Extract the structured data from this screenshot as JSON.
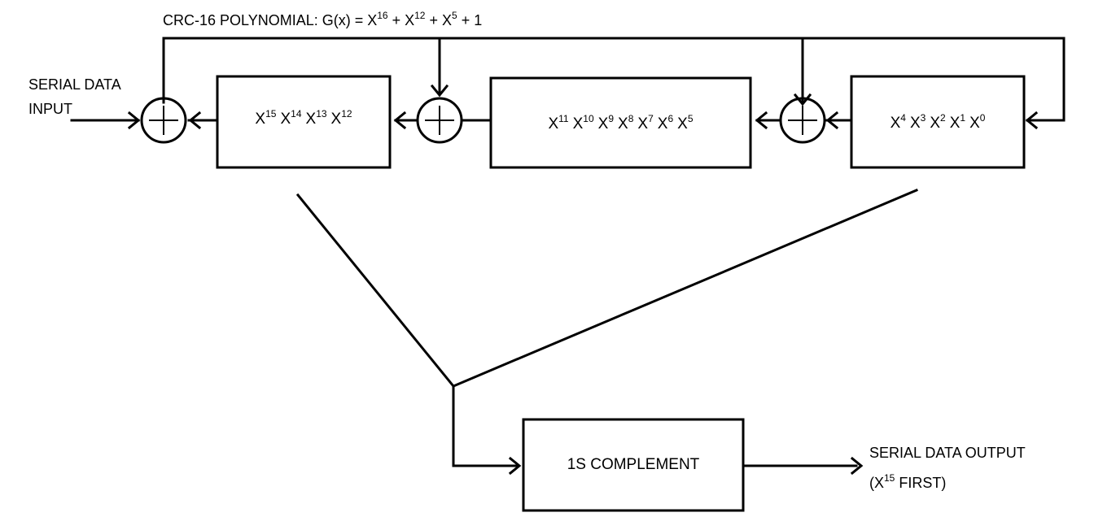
{
  "title": {
    "prefix": "CRC-16 POLYNOMIAL: G(x) = X",
    "e1": "16",
    "mid1": " + X",
    "e2": "12",
    "mid2": " + X",
    "e3": "5",
    "suffix": " + 1"
  },
  "input_label": {
    "line1": "SERIAL DATA",
    "line2": "INPUT"
  },
  "registers": [
    {
      "terms": [
        {
          "base": "X",
          "exp": "15"
        },
        {
          "base": "X",
          "exp": "14"
        },
        {
          "base": "X",
          "exp": "13"
        },
        {
          "base": "X",
          "exp": "12"
        }
      ]
    },
    {
      "terms": [
        {
          "base": "X",
          "exp": "11"
        },
        {
          "base": "X",
          "exp": "10"
        },
        {
          "base": "X",
          "exp": "9"
        },
        {
          "base": "X",
          "exp": "8"
        },
        {
          "base": "X",
          "exp": "7"
        },
        {
          "base": "X",
          "exp": "6"
        },
        {
          "base": "X",
          "exp": "5"
        }
      ]
    },
    {
      "terms": [
        {
          "base": "X",
          "exp": "4"
        },
        {
          "base": "X",
          "exp": "3"
        },
        {
          "base": "X",
          "exp": "2"
        },
        {
          "base": "X",
          "exp": "1"
        },
        {
          "base": "X",
          "exp": "0"
        }
      ]
    }
  ],
  "complement_box": {
    "label": "1S COMPLEMENT"
  },
  "output_label": {
    "line1": "SERIAL DATA OUTPUT",
    "line2_prefix": "(X",
    "line2_exp": "15",
    "line2_suffix": " FIRST)"
  }
}
